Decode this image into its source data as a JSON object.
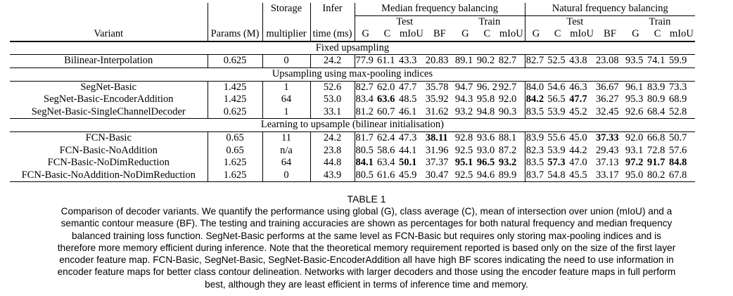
{
  "table": {
    "header": {
      "variant": "Variant",
      "params": "Params (M)",
      "storage_top": "Storage",
      "storage_bottom": "multiplier",
      "infer_top": "Infer",
      "infer_bottom": "time (ms)",
      "median_group": "Median frequency balancing",
      "natural_group": "Natural frequency balancing",
      "test": "Test",
      "train": "Train",
      "g": "G",
      "c": "C",
      "miou": "mIoU",
      "bf": "BF"
    },
    "sections": [
      {
        "title": "Fixed upsampling",
        "rows": [
          {
            "variant": "Bilinear-Interpolation",
            "params": "0.625",
            "storage": "0",
            "infer": "24.2",
            "mt_g": "77.9",
            "mt_c": "61.1",
            "mt_m": "43.3",
            "mt_bf": "20.83",
            "mr_g": "89.1",
            "mr_c": "90.2",
            "mr_m": "82.7",
            "nt_g": "82.7",
            "nt_c": "52.5",
            "nt_m": "43.8",
            "nt_bf": "23.08",
            "nr_g": "93.5",
            "nr_c": "74.1",
            "nr_m": "59.9"
          }
        ]
      },
      {
        "title": "Upsampling using max-pooling indices",
        "rows": [
          {
            "variant": "SegNet-Basic",
            "params": "1.425",
            "storage": "1",
            "infer": "52.6",
            "mt_g": "82.7",
            "mt_c": "62.0",
            "mt_m": "47.7",
            "mt_bf": "35.78",
            "mr_g": "94.7",
            "mr_c": "96. 2",
            "mr_m": "92.7",
            "nt_g": "84.0",
            "nt_c": "54.6",
            "nt_m": "46.3",
            "nt_bf": "36.67",
            "nr_g": "96.1",
            "nr_c": "83.9",
            "nr_m": "73.3"
          },
          {
            "variant": "SegNet-Basic-EncoderAddition",
            "params": "1.425",
            "storage": "64",
            "infer": "53.0",
            "mt_g": "83.4",
            "mt_c": "63.6",
            "mt_m": "48.5",
            "mt_bf": "35.92",
            "mr_g": "94.3",
            "mr_c": "95.8",
            "mr_m": "92.0",
            "nt_g": "84.2",
            "nt_c": "56.5",
            "nt_m": "47.7",
            "nt_bf": "36.27",
            "nr_g": "95.3",
            "nr_c": "80.9",
            "nr_m": "68.9"
          },
          {
            "variant": "SegNet-Basic-SingleChannelDecoder",
            "params": "0.625",
            "storage": "1",
            "infer": "33.1",
            "mt_g": "81.2",
            "mt_c": "60.7",
            "mt_m": "46.1",
            "mt_bf": "31.62",
            "mr_g": "93.2",
            "mr_c": "94.8",
            "mr_m": "90.3",
            "nt_g": "83.5",
            "nt_c": "53.9",
            "nt_m": "45.2",
            "nt_bf": "32.45",
            "nr_g": "92.6",
            "nr_c": "68.4",
            "nr_m": "52.8"
          }
        ]
      },
      {
        "title": "Learning to upsample (bilinear initialisation)",
        "rows": [
          {
            "variant": "FCN-Basic",
            "params": "0.65",
            "storage": "11",
            "infer": "24.2",
            "mt_g": "81.7",
            "mt_c": "62.4",
            "mt_m": "47.3",
            "mt_bf": "38.11",
            "mr_g": "92.8",
            "mr_c": "93.6",
            "mr_m": "88.1",
            "nt_g": "83.9",
            "nt_c": "55.6",
            "nt_m": "45.0",
            "nt_bf": "37.33",
            "nr_g": "92.0",
            "nr_c": "66.8",
            "nr_m": "50.7"
          },
          {
            "variant": "FCN-Basic-NoAddition",
            "params": "0.65",
            "storage": "n/a",
            "infer": "23.8",
            "mt_g": "80.5",
            "mt_c": "58.6",
            "mt_m": "44.1",
            "mt_bf": "31.96",
            "mr_g": "92.5",
            "mr_c": "93.0",
            "mr_m": "87.2",
            "nt_g": "82.3",
            "nt_c": "53.9",
            "nt_m": "44.2",
            "nt_bf": "29.43",
            "nr_g": "93.1",
            "nr_c": "72.8",
            "nr_m": "57.6"
          },
          {
            "variant": "FCN-Basic-NoDimReduction",
            "params": "1.625",
            "storage": "64",
            "infer": "44.8",
            "mt_g": "84.1",
            "mt_c": "63.4",
            "mt_m": "50.1",
            "mt_bf": "37.37",
            "mr_g": "95.1",
            "mr_c": "96.5",
            "mr_m": "93.2",
            "nt_g": "83.5",
            "nt_c": "57.3",
            "nt_m": "47.0",
            "nt_bf": "37.13",
            "nr_g": "97.2",
            "nr_c": "91.7",
            "nr_m": "84.8"
          },
          {
            "variant": "FCN-Basic-NoAddition-NoDimReduction",
            "params": "1.625",
            "storage": "0",
            "infer": "43.9",
            "mt_g": "80.5",
            "mt_c": "61.6",
            "mt_m": "45.9",
            "mt_bf": "30.47",
            "mr_g": "92.5",
            "mr_c": "94.6",
            "mr_m": "89.9",
            "nt_g": "83.7",
            "nt_c": "54.8",
            "nt_m": "45.5",
            "nt_bf": "33.17",
            "nr_g": "95.0",
            "nr_c": "80.2",
            "nr_m": "67.8"
          }
        ]
      }
    ],
    "bold_cells": [
      "1.1.mt_c",
      "1.1.nt_g",
      "1.1.nt_m",
      "2.0.mt_bf",
      "2.0.nt_bf",
      "2.2.mt_g",
      "2.2.mt_m",
      "2.2.mr_g",
      "2.2.mr_c",
      "2.2.mr_m",
      "2.2.nt_c",
      "2.2.nr_g",
      "2.2.nr_c",
      "2.2.nr_m"
    ]
  },
  "caption": {
    "title": "TABLE 1",
    "lines": [
      "Comparison of decoder variants. We quantify the performance using global (G), class average (C), mean of intersection over union (mIoU) and a",
      "semantic contour measure (BF). The testing and training accuracies are shown as percentages for both natural frequency and median frequency",
      "balanced training loss function. SegNet-Basic performs at the same level as FCN-Basic but requires only storing max-pooling indices and is",
      "therefore more memory efficient during inference. Note that the theoretical memory requirement reported is based only on the size of the first layer",
      "encoder feature map. FCN-Basic, SegNet-Basic, SegNet-Basic-EncoderAddition all have high BF scores indicating the need to use information in",
      "encoder feature maps for better class contour delineation. Networks with larger decoders and those using the encoder feature maps in full perform",
      "best, although they are least efficient in terms of inference time and memory."
    ]
  }
}
